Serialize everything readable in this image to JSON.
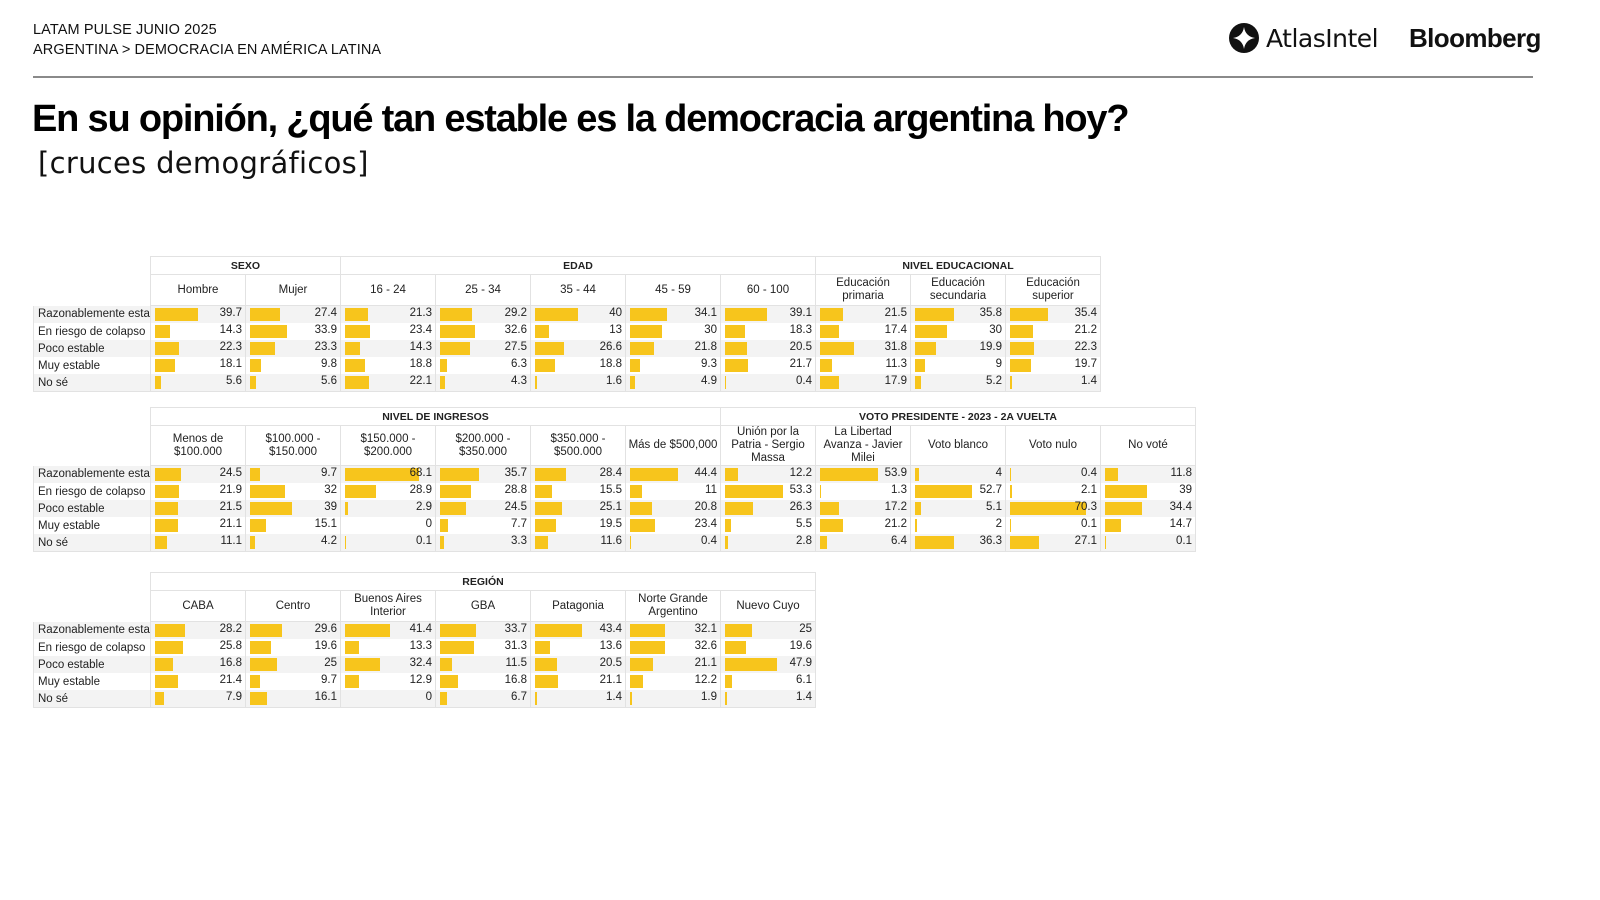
{
  "header": {
    "line1": "LATAM PULSE JUNIO 2025",
    "line2": "ARGENTINA > DEMOCRACIA EN AMÉRICA LATINA",
    "logo_atlas": "AtlasIntel",
    "logo_bloomberg": "Bloomberg"
  },
  "title": "En su opinión, ¿qué tan estable es la democracia argentina hoy?",
  "subtitle": "[cruces demográficos]",
  "colors": {
    "bar": "#f7c51c",
    "grid": "#e2e2e2",
    "stripe": "#f3f3f3"
  },
  "chart_data": [
    {
      "type": "table",
      "title": "SEXO / EDAD / NIVEL EDUCACIONAL",
      "row_labels": [
        "Razonablemente esta",
        "En riesgo de colapso",
        "Poco estable",
        "Muy estable",
        "No sé"
      ],
      "groups": [
        {
          "name": "SEXO",
          "columns": [
            "Hombre",
            "Mujer"
          ]
        },
        {
          "name": "EDAD",
          "columns": [
            "16 - 24",
            "25 - 34",
            "35 - 44",
            "45 - 59",
            "60 - 100"
          ]
        },
        {
          "name": "NIVEL EDUCACIONAL",
          "columns": [
            "Educación primaria",
            "Educación secundaria",
            "Educación superior"
          ]
        }
      ],
      "columns": [
        "Hombre",
        "Mujer",
        "16 - 24",
        "25 - 34",
        "35 - 44",
        "45 - 59",
        "60 - 100",
        "Educación primaria",
        "Educación secundaria",
        "Educación superior"
      ],
      "values": [
        [
          39.7,
          27.4,
          21.3,
          29.2,
          40,
          34.1,
          39.1,
          21.5,
          35.8,
          35.4
        ],
        [
          14.3,
          33.9,
          23.4,
          32.6,
          13,
          30,
          18.3,
          17.4,
          30,
          21.2
        ],
        [
          22.3,
          23.3,
          14.3,
          27.5,
          26.6,
          21.8,
          20.5,
          31.8,
          19.9,
          22.3
        ],
        [
          18.1,
          9.8,
          18.8,
          6.3,
          18.8,
          9.3,
          21.7,
          11.3,
          9,
          19.7
        ],
        [
          5.6,
          5.6,
          22.1,
          4.3,
          1.6,
          4.9,
          0.4,
          17.9,
          5.2,
          1.4
        ]
      ]
    },
    {
      "type": "table",
      "title": "NIVEL DE INGRESOS / VOTO PRESIDENTE - 2023 - 2A VUELTA",
      "row_labels": [
        "Razonablemente esta",
        "En riesgo de colapso",
        "Poco estable",
        "Muy estable",
        "No sé"
      ],
      "groups": [
        {
          "name": "NIVEL DE INGRESOS",
          "columns": [
            "Menos de $100.000",
            "$100.000 - $150.000",
            "$150.000 - $200.000",
            "$200.000 - $350.000",
            "$350.000 - $500.000",
            "Más de $500,000"
          ]
        },
        {
          "name": "VOTO PRESIDENTE - 2023 - 2A VUELTA",
          "columns": [
            "Unión por la Patria - Sergio Massa",
            "La Libertad Avanza - Javier Milei",
            "Voto blanco",
            "Voto nulo",
            "No voté"
          ]
        }
      ],
      "columns": [
        "Menos de $100.000",
        "$100.000 - $150.000",
        "$150.000 - $200.000",
        "$200.000 - $350.000",
        "$350.000 - $500.000",
        "Más de $500,000",
        "Unión por la Patria - Sergio Massa",
        "La Libertad Avanza - Javier Milei",
        "Voto blanco",
        "Voto nulo",
        "No voté"
      ],
      "values": [
        [
          24.5,
          9.7,
          68.1,
          35.7,
          28.4,
          44.4,
          12.2,
          53.9,
          4,
          0.4,
          11.8
        ],
        [
          21.9,
          32,
          28.9,
          28.8,
          15.5,
          11,
          53.3,
          1.3,
          52.7,
          2.1,
          39
        ],
        [
          21.5,
          39,
          2.9,
          24.5,
          25.1,
          20.8,
          26.3,
          17.2,
          5.1,
          70.3,
          34.4
        ],
        [
          21.1,
          15.1,
          0,
          7.7,
          19.5,
          23.4,
          5.5,
          21.2,
          2,
          0.1,
          14.7
        ],
        [
          11.1,
          4.2,
          0.1,
          3.3,
          11.6,
          0.4,
          2.8,
          6.4,
          36.3,
          27.1,
          0.1
        ]
      ]
    },
    {
      "type": "table",
      "title": "REGIÓN",
      "row_labels": [
        "Razonablemente esta",
        "En riesgo de colapso",
        "Poco estable",
        "Muy estable",
        "No sé"
      ],
      "groups": [
        {
          "name": "REGIÓN",
          "columns": [
            "CABA",
            "Centro",
            "Buenos Aires Interior",
            "GBA",
            "Patagonia",
            "Norte Grande Argentino",
            "Nuevo Cuyo"
          ]
        }
      ],
      "columns": [
        "CABA",
        "Centro",
        "Buenos Aires Interior",
        "GBA",
        "Patagonia",
        "Norte Grande Argentino",
        "Nuevo Cuyo"
      ],
      "values": [
        [
          28.2,
          29.6,
          41.4,
          33.7,
          43.4,
          32.1,
          25
        ],
        [
          25.8,
          19.6,
          13.3,
          31.3,
          13.6,
          32.6,
          19.6
        ],
        [
          16.8,
          25,
          32.4,
          11.5,
          20.5,
          21.1,
          47.9
        ],
        [
          21.4,
          9.7,
          12.9,
          16.8,
          21.1,
          12.2,
          6.1
        ],
        [
          7.9,
          16.1,
          0,
          6.7,
          1.4,
          1.9,
          1.4
        ]
      ]
    }
  ]
}
